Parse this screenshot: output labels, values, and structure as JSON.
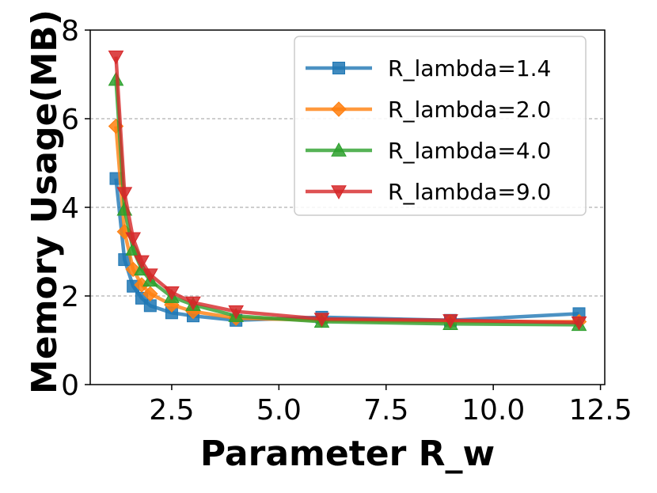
{
  "chart_data": {
    "type": "line",
    "title": "",
    "xlabel": "Parameter R_w",
    "ylabel": "Memory Usage(MB)",
    "xlim": [
      0.6,
      12.6
    ],
    "ylim": [
      0,
      8
    ],
    "xticks": [
      2.5,
      5.0,
      7.5,
      10.0,
      12.5
    ],
    "xtick_labels": [
      "2.5",
      "5.0",
      "7.5",
      "10.0",
      "12.5"
    ],
    "yticks": [
      0,
      2,
      4,
      6,
      8
    ],
    "ytick_labels": [
      "0",
      "2",
      "4",
      "6",
      "8"
    ],
    "grid": "horizontal-dashed",
    "legend_position": "top-right",
    "x": [
      1.2,
      1.4,
      1.6,
      1.8,
      2.0,
      2.5,
      3.0,
      4.0,
      6.0,
      9.0,
      12.0
    ],
    "series": [
      {
        "name": "R_lambda=1.4",
        "color": "#1f77b4",
        "marker": "square",
        "values": [
          4.65,
          2.82,
          2.22,
          1.95,
          1.78,
          1.62,
          1.55,
          1.45,
          1.52,
          1.45,
          1.6
        ]
      },
      {
        "name": "R_lambda=2.0",
        "color": "#ff7f0e",
        "marker": "diamond",
        "values": [
          5.83,
          3.45,
          2.6,
          2.25,
          2.05,
          1.8,
          1.65,
          1.5,
          1.45,
          1.42,
          1.42
        ]
      },
      {
        "name": "R_lambda=4.0",
        "color": "#2ca02c",
        "marker": "triangle-up",
        "values": [
          6.88,
          3.95,
          3.05,
          2.6,
          2.35,
          1.98,
          1.8,
          1.55,
          1.42,
          1.37,
          1.35
        ]
      },
      {
        "name": "R_lambda=9.0",
        "color": "#d62728",
        "marker": "triangle-down",
        "values": [
          7.4,
          4.32,
          3.3,
          2.78,
          2.48,
          2.08,
          1.85,
          1.65,
          1.48,
          1.45,
          1.4
        ]
      }
    ]
  }
}
